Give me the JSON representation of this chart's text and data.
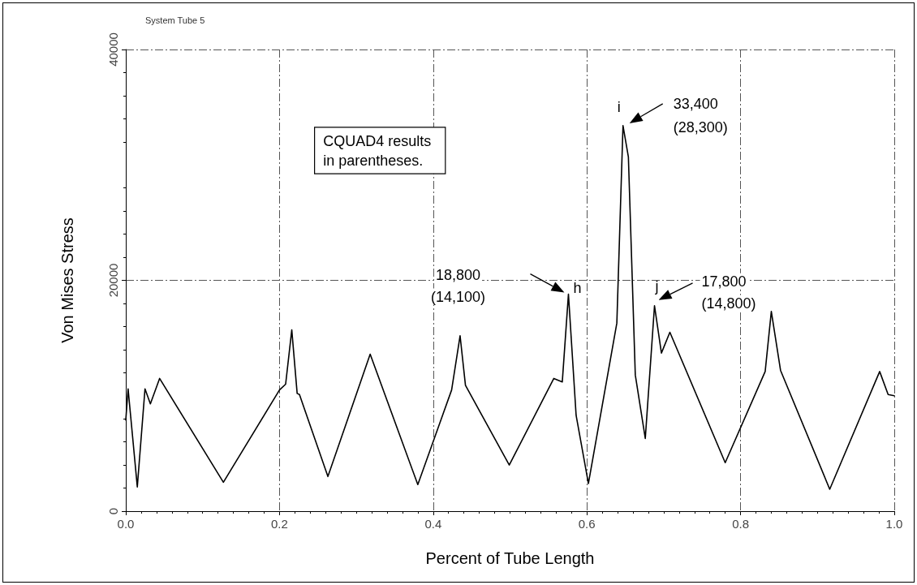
{
  "chart_data": {
    "type": "line",
    "title": "System Tube 5",
    "xlabel": "Percent of Tube Length",
    "ylabel": "Von Mises Stress",
    "x": [
      0,
      0.003,
      0.015,
      0.025,
      0.032,
      0.044,
      0.127,
      0.2,
      0.208,
      0.216,
      0.223,
      0.226,
      0.263,
      0.318,
      0.38,
      0.424,
      0.435,
      0.442,
      0.499,
      0.557,
      0.568,
      0.576,
      0.586,
      0.602,
      0.639,
      0.647,
      0.654,
      0.663,
      0.676,
      0.688,
      0.697,
      0.708,
      0.78,
      0.832,
      0.84,
      0.852,
      0.916,
      0.981,
      0.992,
      1.0
    ],
    "series": [
      {
        "color": "#000000",
        "values": [
          7900,
          10600,
          2100,
          10600,
          9300,
          11500,
          2500,
          10500,
          11000,
          15700,
          10200,
          10100,
          3000,
          13600,
          2300,
          10500,
          15200,
          10900,
          4000,
          11500,
          11200,
          18800,
          8300,
          2400,
          16300,
          33400,
          30700,
          11800,
          6300,
          17800,
          13700,
          15500,
          4200,
          12100,
          17300,
          12200,
          1900,
          12100,
          10100,
          10000
        ]
      }
    ],
    "xlim": [
      0,
      1
    ],
    "ylim": [
      0,
      40000
    ],
    "xticks": [
      {
        "value": 0,
        "label": "0.0"
      },
      {
        "value": 0.2,
        "label": "0.2"
      },
      {
        "value": 0.4,
        "label": "0.4"
      },
      {
        "value": 0.6,
        "label": "0.6"
      },
      {
        "value": 0.8,
        "label": "0.8"
      },
      {
        "value": 1,
        "label": "1.0"
      }
    ],
    "yticks": [
      0,
      20000,
      40000
    ],
    "grid": true,
    "marker": "none",
    "line_style": "solid",
    "annotations": [
      "CQUAD4 results in parentheses.",
      {
        "text": "h",
        "x": 0.576,
        "y": 18800
      },
      "18,800",
      "(14,100)",
      {
        "text": "i",
        "x": 0.647,
        "y": 33400
      },
      "33,400",
      "(28,300)",
      {
        "text": "j",
        "x": 0.688,
        "y": 17800
      },
      "17,800",
      "(14,800)"
    ]
  }
}
